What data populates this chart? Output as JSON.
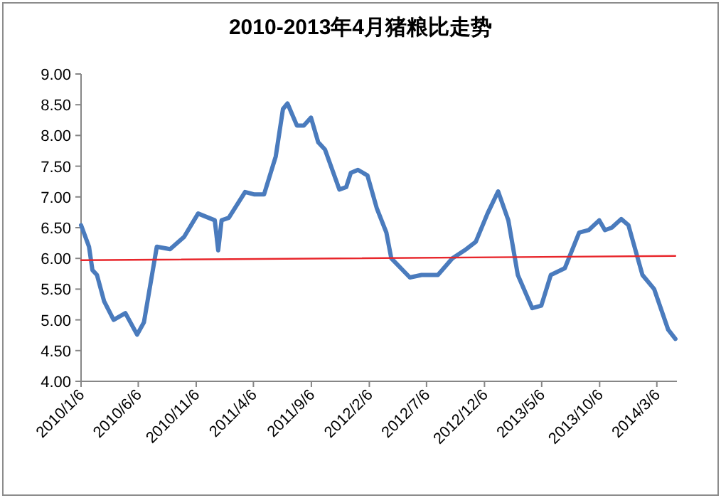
{
  "chart_data": {
    "type": "line",
    "title": "2010-2013年4月猪粮比走势",
    "x": [
      "2010-01-06",
      "2010-01-27",
      "2010-02-05",
      "2010-02-17",
      "2010-03-08",
      "2010-04-02",
      "2010-05-03",
      "2010-06-03",
      "2010-06-21",
      "2010-07-10",
      "2010-07-25",
      "2010-08-29",
      "2010-10-05",
      "2010-11-11",
      "2010-12-25",
      "2011-01-03",
      "2011-01-12",
      "2011-01-31",
      "2011-03-15",
      "2011-04-09",
      "2011-05-04",
      "2011-06-04",
      "2011-06-23",
      "2011-07-05",
      "2011-07-30",
      "2011-08-17",
      "2011-09-05",
      "2011-09-24",
      "2011-10-12",
      "2011-11-19",
      "2011-12-07",
      "2011-12-19",
      "2012-01-07",
      "2012-02-01",
      "2012-02-26",
      "2012-03-22",
      "2012-04-04",
      "2012-05-23",
      "2012-06-23",
      "2012-08-05",
      "2012-09-12",
      "2012-10-19",
      "2012-11-13",
      "2012-12-14",
      "2013-01-11",
      "2013-02-07",
      "2013-03-04",
      "2013-04-11",
      "2013-05-05",
      "2013-05-30",
      "2013-07-06",
      "2013-08-13",
      "2013-09-07",
      "2013-10-05",
      "2013-10-20",
      "2013-11-07",
      "2013-12-02",
      "2013-12-21",
      "2014-01-27",
      "2014-02-27",
      "2014-04-05",
      "2014-04-24"
    ],
    "series": [
      {
        "color": "#4a7bbd",
        "values": [
          6.54,
          6.19,
          5.81,
          5.73,
          5.3,
          5.0,
          5.11,
          4.76,
          4.96,
          5.65,
          6.19,
          6.15,
          6.35,
          6.73,
          6.62,
          6.13,
          6.62,
          6.66,
          7.08,
          7.04,
          7.04,
          7.66,
          8.43,
          8.52,
          8.16,
          8.16,
          8.29,
          7.89,
          7.77,
          7.12,
          7.16,
          7.39,
          7.44,
          7.35,
          6.81,
          6.42,
          6.0,
          5.69,
          5.73,
          5.73,
          6.0,
          6.15,
          6.27,
          6.73,
          7.09,
          6.62,
          5.73,
          5.19,
          5.23,
          5.73,
          5.84,
          6.42,
          6.46,
          6.62,
          6.46,
          6.5,
          6.64,
          6.54,
          5.73,
          5.5,
          4.84,
          4.69
        ]
      },
      {
        "color": "#e8262b",
        "x": [
          "2010-01-06",
          "2014-04-24"
        ],
        "values": [
          5.97,
          6.04
        ]
      }
    ],
    "xlim": [
      "2010-01-06",
      "2014-04-28"
    ],
    "xticks": [
      {
        "value": "2010-01-06",
        "label": "2010/1/6"
      },
      {
        "value": "2010-06-06",
        "label": "2010/6/6"
      },
      {
        "value": "2010-11-06",
        "label": "2010/11/6"
      },
      {
        "value": "2011-04-06",
        "label": "2011/4/6"
      },
      {
        "value": "2011-09-06",
        "label": "2011/9/6"
      },
      {
        "value": "2012-02-06",
        "label": "2012/2/6"
      },
      {
        "value": "2012-07-06",
        "label": "2012/7/6"
      },
      {
        "value": "2012-12-06",
        "label": "2012/12/6"
      },
      {
        "value": "2013-05-06",
        "label": "2013/5/6"
      },
      {
        "value": "2013-10-06",
        "label": "2013/10/6"
      },
      {
        "value": "2014-03-06",
        "label": "2014/3/6"
      }
    ],
    "ylim": [
      4,
      9
    ],
    "yticks": [
      {
        "value": 4,
        "label": "4.00"
      },
      {
        "value": 4.5,
        "label": "4.50"
      },
      {
        "value": 5,
        "label": "5.00"
      },
      {
        "value": 5.5,
        "label": "5.50"
      },
      {
        "value": 6,
        "label": "6.00"
      },
      {
        "value": 6.5,
        "label": "6.50"
      },
      {
        "value": 7,
        "label": "7.00"
      },
      {
        "value": 7.5,
        "label": "7.50"
      },
      {
        "value": 8,
        "label": "8.00"
      },
      {
        "value": 8.5,
        "label": "8.50"
      },
      {
        "value": 9,
        "label": "9.00"
      }
    ]
  }
}
